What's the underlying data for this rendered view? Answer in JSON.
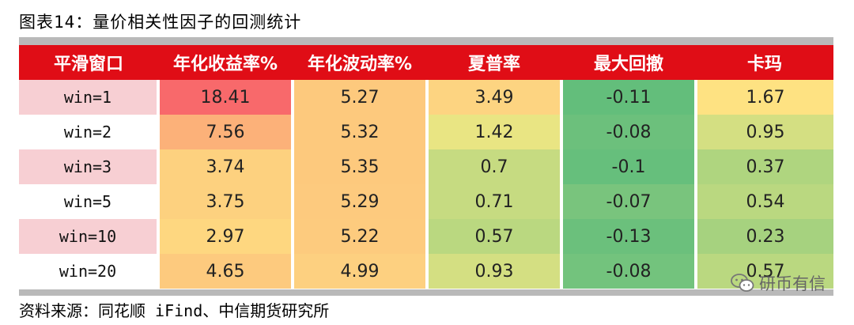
{
  "title": "图表14：量价相关性因子的回测统计",
  "table": {
    "headers": [
      "平滑窗口",
      "年化收益率%",
      "年化波动率%",
      "夏普率",
      "最大回撤",
      "卡玛"
    ],
    "rows": [
      {
        "label": "win=1",
        "values": [
          "18.41",
          "5.27",
          "3.49",
          "-0.11",
          "1.67"
        ]
      },
      {
        "label": "win=2",
        "values": [
          "7.56",
          "5.32",
          "1.42",
          "-0.08",
          "0.95"
        ]
      },
      {
        "label": "win=3",
        "values": [
          "3.74",
          "5.35",
          "0.7",
          "-0.1",
          "0.37"
        ]
      },
      {
        "label": "win=5",
        "values": [
          "3.75",
          "5.29",
          "0.71",
          "-0.07",
          "0.54"
        ]
      },
      {
        "label": "win=10",
        "values": [
          "2.97",
          "5.22",
          "0.57",
          "-0.13",
          "0.23"
        ]
      },
      {
        "label": "win=20",
        "values": [
          "4.65",
          "4.99",
          "0.93",
          "-0.08",
          "0.57"
        ]
      }
    ],
    "label_colors": [
      "#f7cfd3",
      "#ffffff",
      "#f7cfd3",
      "#ffffff",
      "#f7cfd3",
      "#ffffff"
    ],
    "cell_colors": [
      [
        "#f8696b",
        "#fdc97d",
        "#fdd481",
        "#63be7b",
        "#fee282"
      ],
      [
        "#fcb179",
        "#fdc97d",
        "#e9e583",
        "#6cc07c",
        "#d4df82"
      ],
      [
        "#fdd17f",
        "#fdc97d",
        "#c6db81",
        "#66bf7c",
        "#afd57f"
      ],
      [
        "#fdd17f",
        "#fdca7e",
        "#c6db81",
        "#79c47d",
        "#bad880"
      ],
      [
        "#fed780",
        "#fdcb7e",
        "#bad880",
        "#6bc07c",
        "#a6d27f"
      ],
      [
        "#fdca7e",
        "#fdd080",
        "#d4df82",
        "#73c37d",
        "#bad880"
      ]
    ]
  },
  "source": "资料来源：同花顺 iFind、中信期货研究所",
  "watermark": {
    "text": "研币有信",
    "icon": "wechat-icon"
  }
}
